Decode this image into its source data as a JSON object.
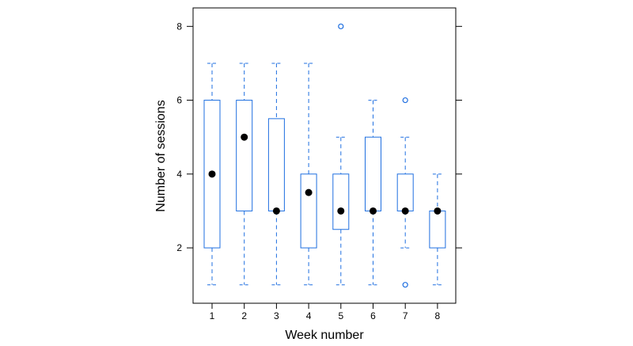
{
  "chart_data": {
    "type": "box",
    "xlabel": "Week number",
    "ylabel": "Number of sessions",
    "categories": [
      "1",
      "2",
      "3",
      "4",
      "5",
      "6",
      "7",
      "8"
    ],
    "ylim": [
      0.5,
      8.5
    ],
    "yticks": [
      "2",
      "4",
      "6",
      "8"
    ],
    "grid": false,
    "boxes": [
      {
        "whisker_low": 1,
        "q1": 2,
        "median": 4,
        "q3": 6,
        "whisker_high": 7,
        "outliers": []
      },
      {
        "whisker_low": 1,
        "q1": 3,
        "median": 5,
        "q3": 6,
        "whisker_high": 7,
        "outliers": []
      },
      {
        "whisker_low": 1,
        "q1": 3,
        "median": 3,
        "q3": 5.5,
        "whisker_high": 7,
        "outliers": []
      },
      {
        "whisker_low": 1,
        "q1": 2,
        "median": 3.5,
        "q3": 4,
        "whisker_high": 7,
        "outliers": []
      },
      {
        "whisker_low": 1,
        "q1": 2.5,
        "median": 3,
        "q3": 4,
        "whisker_high": 5,
        "outliers": [
          8
        ]
      },
      {
        "whisker_low": 1,
        "q1": 3,
        "median": 3,
        "q3": 5,
        "whisker_high": 6,
        "outliers": []
      },
      {
        "whisker_low": 2,
        "q1": 3,
        "median": 3,
        "q3": 4,
        "whisker_high": 5,
        "outliers": [
          6,
          1
        ]
      },
      {
        "whisker_low": 1,
        "q1": 2,
        "median": 3,
        "q3": 3,
        "whisker_high": 4,
        "outliers": []
      }
    ],
    "colors": {
      "box": "#1f6fe0",
      "median": "#000000",
      "frame": "#000000"
    }
  }
}
